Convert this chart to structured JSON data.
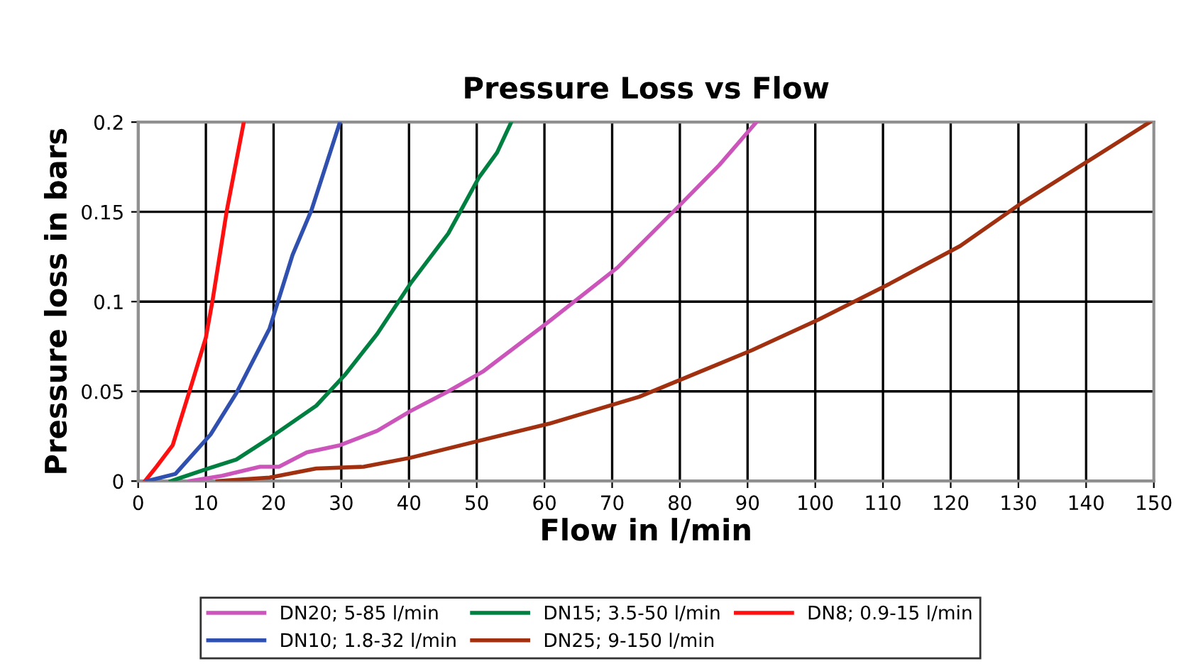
{
  "chart_data": {
    "type": "line",
    "title": "Pressure Loss vs Flow",
    "xlabel": "Flow in l/min",
    "ylabel": "Pressure loss in bars",
    "xlim": [
      0,
      150
    ],
    "xticks": [
      0,
      10,
      20,
      30,
      40,
      50,
      60,
      70,
      80,
      90,
      100,
      110,
      120,
      130,
      140,
      150
    ],
    "ylim": [
      0,
      0.2
    ],
    "yticks": [
      0,
      0.05,
      0.1,
      0.15,
      0.2
    ],
    "grid": true,
    "legend": "bottom",
    "marker": "none",
    "line_style": "solid",
    "series": [
      {
        "name": "DN20; 5-85 l/min",
        "color": "#cc55bb",
        "x": [
          7.6,
          12.4,
          18,
          20.8,
          24.9,
          29.8,
          35.3,
          40.2,
          45.8,
          50.9,
          60.7,
          70.8,
          79.8,
          85.8,
          91.3
        ],
        "values": [
          0,
          0.003,
          0.008,
          0.008,
          0.016,
          0.02,
          0.028,
          0.039,
          0.05,
          0.061,
          0.089,
          0.119,
          0.153,
          0.176,
          0.2
        ]
      },
      {
        "name": "DN15; 3.5-50 l/min",
        "color": "#008040",
        "x": [
          4.8,
          10.3,
          14.5,
          19.4,
          26.3,
          30.5,
          35.3,
          40.2,
          45.8,
          50.3,
          53,
          55.1
        ],
        "values": [
          0,
          0.007,
          0.012,
          0.024,
          0.042,
          0.059,
          0.082,
          0.11,
          0.138,
          0.169,
          0.183,
          0.2
        ]
      },
      {
        "name": "DN8; 0.9-15 l/min",
        "color": "#ff1010",
        "x": [
          1.0,
          2.7,
          5.1,
          7.9,
          10,
          11,
          13.1,
          15.6
        ],
        "values": [
          0,
          0.008,
          0.02,
          0.054,
          0.08,
          0.101,
          0.151,
          0.2
        ]
      },
      {
        "name": "DN10; 1.8-32 l/min",
        "color": "#3050b0",
        "x": [
          1.3,
          5.5,
          10.7,
          14.5,
          19.4,
          22.8,
          25.6,
          29.8
        ],
        "values": [
          0,
          0.004,
          0.026,
          0.049,
          0.085,
          0.126,
          0.151,
          0.2
        ]
      },
      {
        "name": "DN25; 9-150 l/min",
        "color": "#a03010",
        "x": [
          11.7,
          19.4,
          26.3,
          33.3,
          40.2,
          50.9,
          60.7,
          74.0,
          90.7,
          100.5,
          111.0,
          121.4,
          130.5,
          141,
          149.4
        ],
        "values": [
          0,
          0.002,
          0.007,
          0.008,
          0.013,
          0.023,
          0.032,
          0.047,
          0.073,
          0.09,
          0.11,
          0.131,
          0.155,
          0.18,
          0.2
        ]
      }
    ]
  }
}
